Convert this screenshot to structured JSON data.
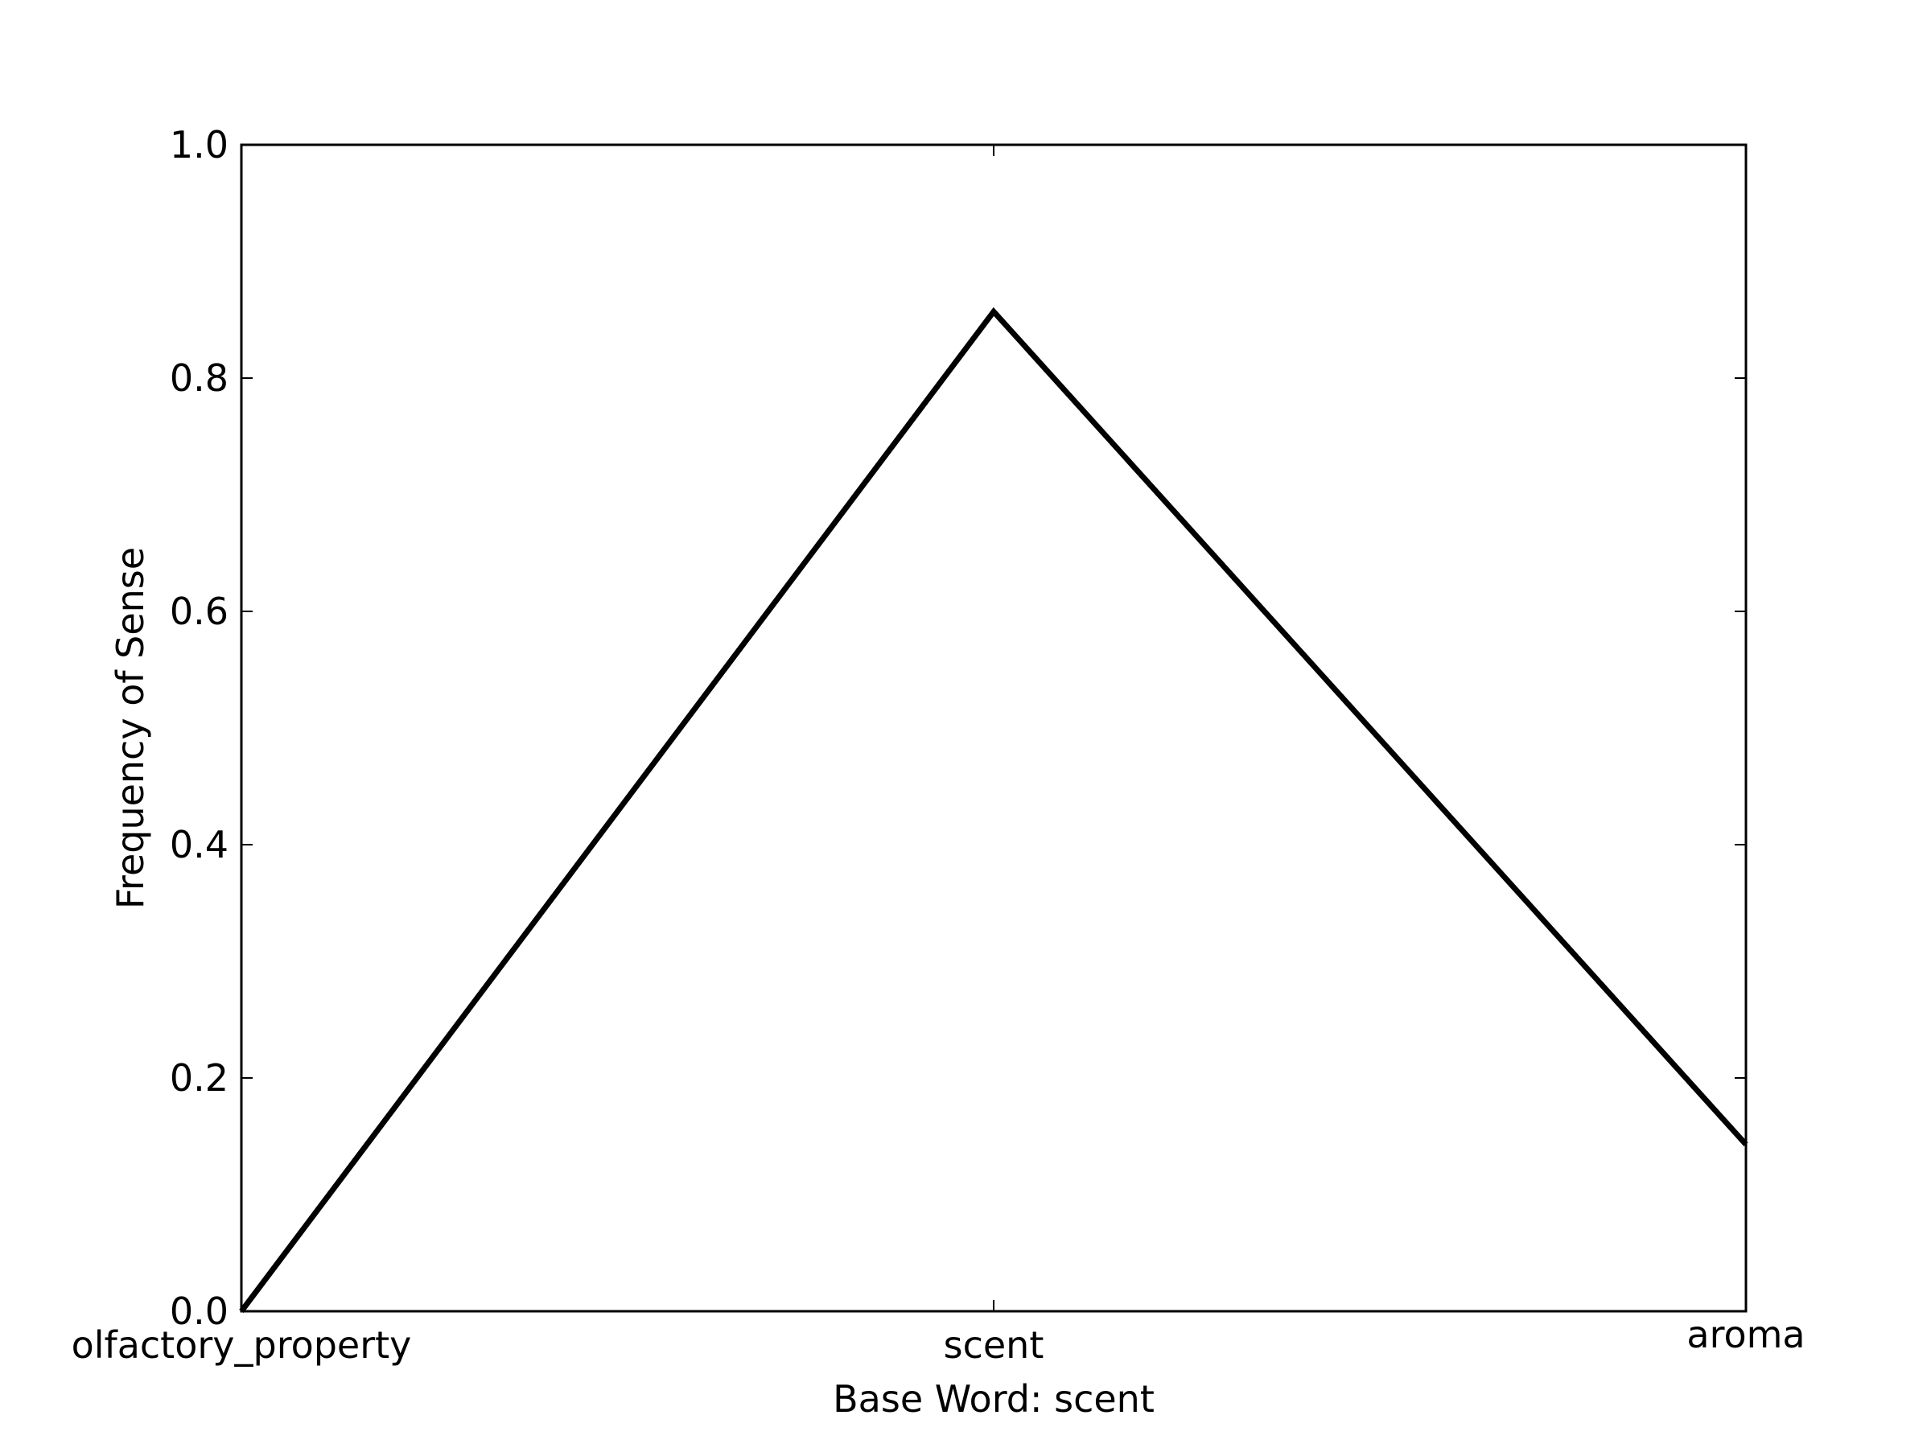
{
  "chart_data": {
    "type": "line",
    "categories": [
      "olfactory_property",
      "scent",
      "aroma"
    ],
    "series": [
      {
        "values": [
          0.0,
          0.857,
          0.143
        ]
      }
    ],
    "xlabel": "Base Word: scent",
    "ylabel": "Frequency of Sense",
    "ylim": [
      0.0,
      1.0
    ],
    "yticks": [
      "0.0",
      "0.2",
      "0.4",
      "0.6",
      "0.8",
      "1.0"
    ],
    "grid": false,
    "line_color": "#000000"
  }
}
